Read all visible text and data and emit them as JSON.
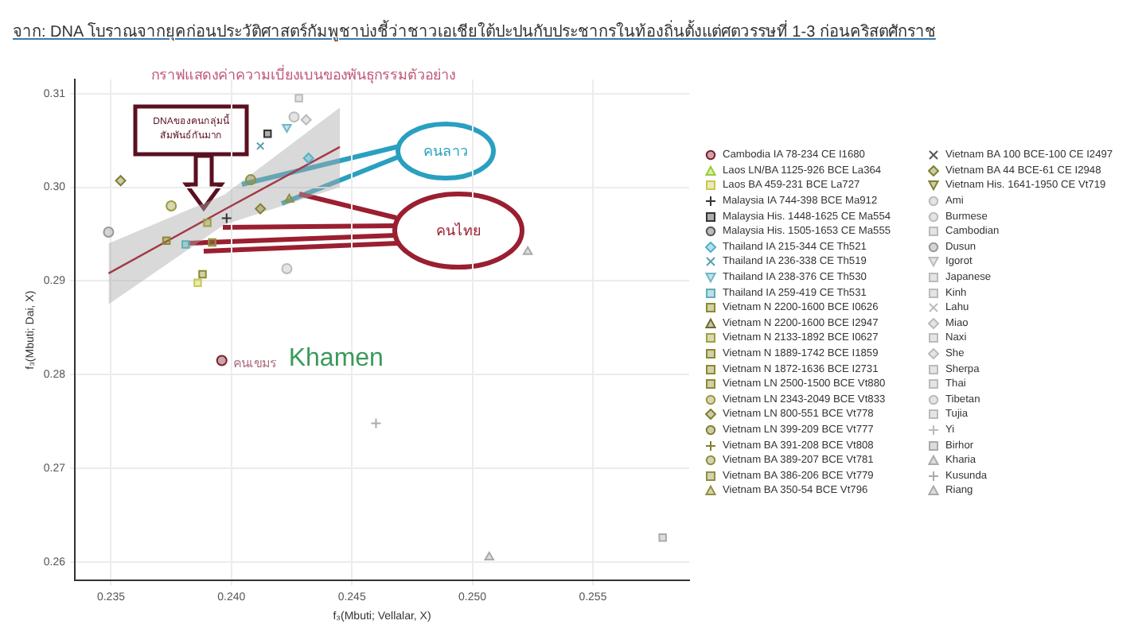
{
  "chart_data": {
    "type": "scatter",
    "title": "จาก: DNA โบราณจากยุคก่อนประวัติศาสตร์กัมพูชาบ่งชี้ว่าชาวเอเชียใต้ปะปนกับประชากรในท้องถิ่นตั้งแต่ศตวรรษที่ 1-3 ก่อนคริสตศักราช",
    "subtitle": "กราฟแสดงค่าความเบี่ยงเบนของพันธุกรรมตัวอย่าง",
    "xlabel": "f₃(Mbuti; Vellalar, X)",
    "ylabel": "f₃(Mbuti; Dai, X)",
    "xlim": [
      0.2335,
      0.259
    ],
    "ylim": [
      0.258,
      0.3115
    ],
    "xticks": [
      0.235,
      {
        "value": 0.24,
        "label": "0.240"
      },
      0.245,
      {
        "value": 0.25,
        "label": "0.250"
      },
      0.255
    ],
    "yticks": [
      0.26,
      0.27,
      0.28,
      0.29,
      {
        "value": 0.3,
        "label": "0.30"
      },
      0.31
    ],
    "grid": true,
    "legend": "right",
    "annotations": [
      {
        "text": "คนเขมร",
        "x": 0.2396,
        "y": 0.2815
      },
      {
        "text": "Khamen",
        "x": 0.2396,
        "y": 0.2815
      },
      "คนลาว",
      "คนไทย",
      "DNAของคนกลุ่มนี้ สัมพันธ์กันมาก"
    ],
    "series": [
      {
        "name": "Cambodia IA 78-234 CE  I1680",
        "color": "#7a1f2b",
        "marker": "circle",
        "x": [
          0.2396
        ],
        "values": [
          0.2815
        ]
      },
      {
        "name": "Laos LN/BA 1125-926 BCE La364",
        "color": "#9acd32",
        "marker": "triangle"
      },
      {
        "name": "Laos BA 459-231 BCE La727",
        "color": "#c8c850",
        "marker": "square",
        "x": [
          0.2386
        ],
        "values": [
          0.2898
        ]
      },
      {
        "name": "Malaysia IA 744-398 BCE Ma912",
        "color": "#333333",
        "marker": "plus",
        "x": [
          0.2398
        ],
        "values": [
          0.2967
        ]
      },
      {
        "name": "Malaysia His. 1448-1625 CE Ma554",
        "color": "#333333",
        "marker": "square",
        "x": [
          0.2415
        ],
        "values": [
          0.3057
        ]
      },
      {
        "name": "Malaysia His. 1505-1653 CE Ma555",
        "color": "#555555",
        "marker": "circle"
      },
      {
        "name": "Thailand IA 215-344 CE Th521",
        "color": "#4fb3c7",
        "marker": "diamond",
        "x": [
          0.2432
        ],
        "values": [
          0.3031
        ]
      },
      {
        "name": "Thailand IA 236-338 CE Th519",
        "color": "#5aa0b0",
        "marker": "cross",
        "x": [
          0.2412
        ],
        "values": [
          0.3044
        ]
      },
      {
        "name": "Thailand IA 238-376 CE Th530",
        "color": "#6fb6c8",
        "marker": "triangle-down",
        "x": [
          0.2423
        ],
        "values": [
          0.3064
        ]
      },
      {
        "name": "Thailand IA 259-419 CE Th531",
        "color": "#5fb0b8",
        "marker": "square",
        "x": [
          0.2381
        ],
        "values": [
          0.2939
        ]
      },
      {
        "name": "Vietnam N 2200-1600 BCE  I0626",
        "color": "#8b8b2b",
        "marker": "square",
        "x": [
          0.2388
        ],
        "values": [
          0.2907
        ]
      },
      {
        "name": "Vietnam N 2200-1600 BCE  I2947",
        "color": "#6b6b2b",
        "marker": "triangle"
      },
      {
        "name": "Vietnam N 2133-1892 BCE   I0627",
        "color": "#a0a040",
        "marker": "square",
        "x": [
          0.239
        ],
        "values": [
          0.2962
        ]
      },
      {
        "name": "Vietnam N 1889-1742 BCE  I1859",
        "color": "#8a8a30",
        "marker": "square",
        "x": [
          0.2373
        ],
        "values": [
          0.2943
        ]
      },
      {
        "name": "Vietnam N 1872-1636 BCE  I2731",
        "color": "#8a8a30",
        "marker": "square"
      },
      {
        "name": "Vietnam LN 2500-1500 BCE Vt880",
        "color": "#8a8a30",
        "marker": "square"
      },
      {
        "name": "Vietnam LN 2343-2049 BCE Vt833",
        "color": "#9a9a40",
        "marker": "circle",
        "x": [
          0.2375
        ],
        "values": [
          0.298
        ]
      },
      {
        "name": "Vietnam LN 800-551 BCE Vt778",
        "color": "#808030",
        "marker": "diamond",
        "x": [
          0.2412
        ],
        "values": [
          0.2977
        ]
      },
      {
        "name": "Vietnam LN 399-209 BCE Vt777",
        "color": "#808030",
        "marker": "circle"
      },
      {
        "name": "Vietnam BA 391-208 BCE Vt808",
        "color": "#808030",
        "marker": "plus"
      },
      {
        "name": "Vietnam BA 389-207 BCE Vt781",
        "color": "#909040",
        "marker": "circle",
        "x": [
          0.2408
        ],
        "values": [
          0.3008
        ]
      },
      {
        "name": "Vietnam BA 386-206 BCE Vt779",
        "color": "#909040",
        "marker": "square",
        "x": [
          0.2392
        ],
        "values": [
          0.2941
        ]
      },
      {
        "name": "Vietnam BA 350-54  BCE Vt796",
        "color": "#909040",
        "marker": "triangle",
        "x": [
          0.2424
        ],
        "values": [
          0.2987
        ]
      },
      {
        "name": "Vietnam BA 100 BCE-100 CE I2497",
        "color": "#555555",
        "marker": "cross"
      },
      {
        "name": "Vietnam BA 44 BCE-61 CE I2948",
        "color": "#808030",
        "marker": "diamond",
        "x": [
          0.2354
        ],
        "values": [
          0.3007
        ]
      },
      {
        "name": "Vietnam His. 1641-1950 CE Vt719",
        "color": "#808030",
        "marker": "triangle-down"
      },
      {
        "name": "Ami",
        "color": "#bbbbbb",
        "marker": "circle",
        "x": [
          0.2426
        ],
        "values": [
          0.3075
        ]
      },
      {
        "name": "Burmese",
        "color": "#bbbbbb",
        "marker": "circle"
      },
      {
        "name": "Cambodian",
        "color": "#bbbbbb",
        "marker": "square"
      },
      {
        "name": "Dusun",
        "color": "#999999",
        "marker": "circle",
        "x": [
          0.2349
        ],
        "values": [
          0.2952
        ]
      },
      {
        "name": "Igorot",
        "color": "#bbbbbb",
        "marker": "triangle-down"
      },
      {
        "name": "Japanese",
        "color": "#bbbbbb",
        "marker": "square",
        "x": [
          0.2428
        ],
        "values": [
          0.3095
        ]
      },
      {
        "name": "Kinh",
        "color": "#bbbbbb",
        "marker": "square"
      },
      {
        "name": "Lahu",
        "color": "#bbbbbb",
        "marker": "cross"
      },
      {
        "name": "Miao",
        "color": "#bbbbbb",
        "marker": "diamond"
      },
      {
        "name": "Naxi",
        "color": "#bbbbbb",
        "marker": "square"
      },
      {
        "name": "She",
        "color": "#bbbbbb",
        "marker": "diamond",
        "x": [
          0.2431
        ],
        "values": [
          0.3072
        ]
      },
      {
        "name": "Sherpa",
        "color": "#bbbbbb",
        "marker": "square"
      },
      {
        "name": "Thai",
        "color": "#bbbbbb",
        "marker": "square"
      },
      {
        "name": "Tibetan",
        "color": "#bbbbbb",
        "marker": "circle",
        "x": [
          0.2423
        ],
        "values": [
          0.2913
        ]
      },
      {
        "name": "Tujia",
        "color": "#bbbbbb",
        "marker": "square"
      },
      {
        "name": "Yi",
        "color": "#bbbbbb",
        "marker": "plus"
      },
      {
        "name": "Birhor",
        "color": "#aaaaaa",
        "marker": "square",
        "x": [
          0.2579
        ],
        "values": [
          0.2626
        ]
      },
      {
        "name": "Kharia",
        "color": "#aaaaaa",
        "marker": "triangle",
        "x": [
          0.2507
        ],
        "values": [
          0.2605
        ]
      },
      {
        "name": "Kusunda",
        "color": "#aaaaaa",
        "marker": "plus",
        "x": [
          0.246
        ],
        "values": [
          0.2748
        ]
      },
      {
        "name": "Riang",
        "color": "#aaaaaa",
        "marker": "triangle",
        "x": [
          0.2523
        ],
        "values": [
          0.2931
        ]
      },
      {
        "type": "line",
        "color": "#a33a48",
        "marker": "none",
        "x": [
          0.2349,
          0.2397,
          0.2445
        ],
        "values": [
          0.2908,
          0.2976,
          0.3043
        ],
        "lower": [
          0.2875,
          0.296,
          0.3
        ],
        "upper": [
          0.294,
          0.2992,
          0.3085
        ]
      }
    ]
  }
}
